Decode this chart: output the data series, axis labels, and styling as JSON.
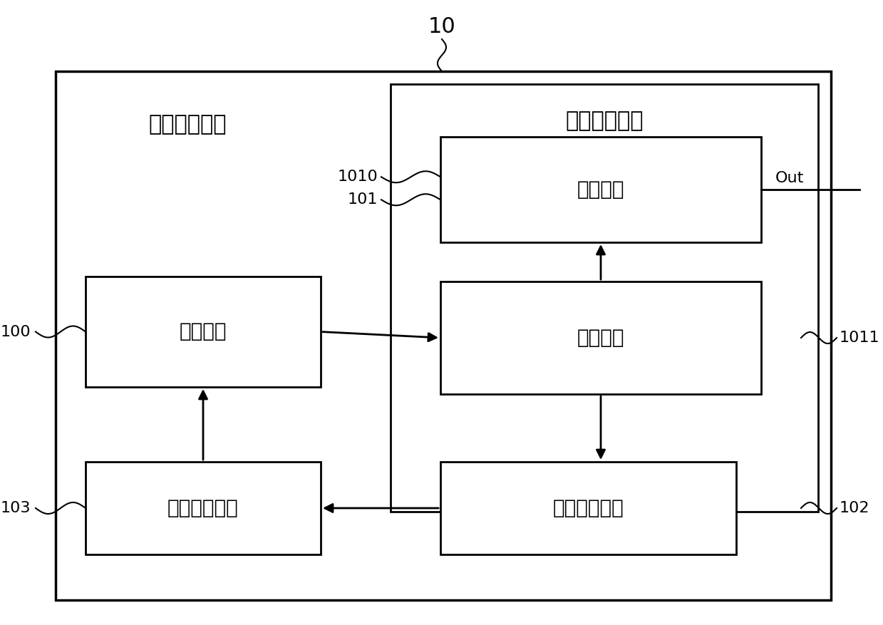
{
  "title_label": "10",
  "outer_box_label": "稳定量子光源",
  "inner_box_label": "强度调制模块",
  "box_coherent_label": "相干光源",
  "box_attenuate_label": "衰减单元",
  "box_split_label": "分光单元",
  "box_detect_label": "光强探测模块",
  "box_analyze_label": "数据分析模块",
  "label_100": "100",
  "label_101": "101",
  "label_1010": "1010",
  "label_1011": "1011",
  "label_102": "102",
  "label_103": "103",
  "out_label": "Out",
  "bg_color": "#ffffff",
  "box_color": "#000000",
  "text_color": "#000000",
  "font_size_cn_large": 22,
  "font_size_cn_medium": 20,
  "font_size_label": 16,
  "font_size_title": 22
}
